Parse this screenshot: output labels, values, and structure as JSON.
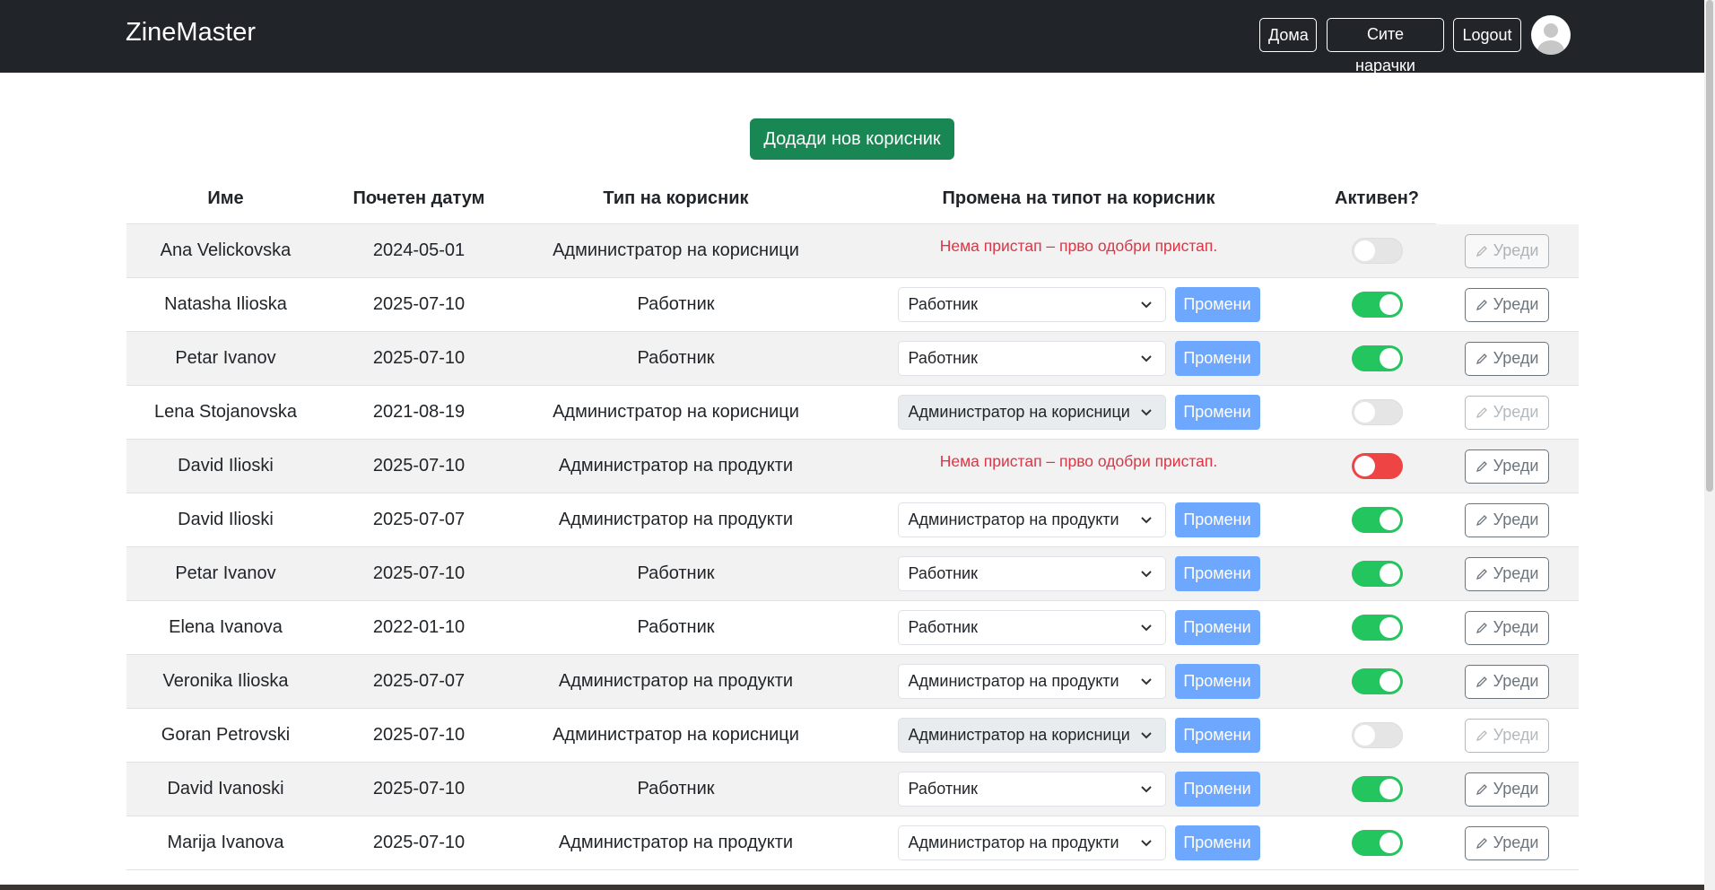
{
  "navbar": {
    "brand": "ZineMaster",
    "links": [
      "Дома",
      "Сите нарачки",
      "Logout"
    ]
  },
  "add_button": "Додади нов корисник",
  "table": {
    "headers": [
      "Име",
      "Почетен датум",
      "Тип на корисник",
      "Промена на типот на корисник",
      "Активен?"
    ],
    "change_button": "Промени",
    "edit_button": "Уреди",
    "rows": [
      {
        "name": "Ana Velickovska",
        "date": "2024-05-01",
        "type": "Администратор на корисници",
        "message": "Нема пристап – прво одобри пристап.",
        "status": "disabled"
      },
      {
        "name": "Natasha Ilioska",
        "date": "2025-07-10",
        "type": "Работник",
        "select": "Работник",
        "status": "on"
      },
      {
        "name": "Petar Ivanov",
        "date": "2025-07-10",
        "type": "Работник",
        "select": "Работник",
        "status": "on"
      },
      {
        "name": "Lena Stojanovska",
        "date": "2021-08-19",
        "type": "Администратор на корисници",
        "select": "Администратор на корисници",
        "status": "disabled"
      },
      {
        "name": "David Ilioski",
        "date": "2025-07-10",
        "type": "Администратор на продукти",
        "message": "Нема пристап – прво одобри пристап.",
        "status": "off"
      },
      {
        "name": "David Ilioski",
        "date": "2025-07-07",
        "type": "Администратор на продукти",
        "select": "Администратор на продукти",
        "status": "on"
      },
      {
        "name": "Petar Ivanov",
        "date": "2025-07-10",
        "type": "Работник",
        "select": "Работник",
        "status": "on"
      },
      {
        "name": "Elena Ivanova",
        "date": "2022-01-10",
        "type": "Работник",
        "select": "Работник",
        "status": "on"
      },
      {
        "name": "Veronika Ilioska",
        "date": "2025-07-07",
        "type": "Администратор на продукти",
        "select": "Администратор на продукти",
        "status": "on"
      },
      {
        "name": "Goran Petrovski",
        "date": "2025-07-10",
        "type": "Администратор на корисници",
        "select": "Администратор на корисници",
        "status": "disabled"
      },
      {
        "name": "David Ivanoski",
        "date": "2025-07-10",
        "type": "Работник",
        "select": "Работник",
        "status": "on"
      },
      {
        "name": "Marija Ivanova",
        "date": "2025-07-10",
        "type": "Администратор на продукти",
        "select": "Администратор на продукти",
        "status": "on"
      }
    ]
  }
}
